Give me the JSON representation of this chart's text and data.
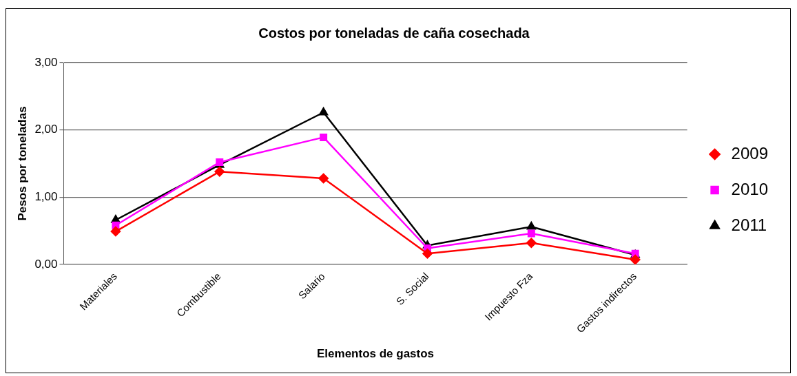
{
  "chart_data": {
    "type": "line",
    "title": "Costos por toneladas de caña cosechada",
    "xlabel": "Elementos de gastos",
    "ylabel": "Pesos por toneladas",
    "categories": [
      "Materiales",
      "Combustible",
      "Salario",
      "S. Social",
      "Impuesto Fza",
      "Gastos indirectos"
    ],
    "series": [
      {
        "name": "2009",
        "color": "#ff0000",
        "marker": "diamond",
        "values": [
          0.49,
          1.38,
          1.28,
          0.16,
          0.32,
          0.07
        ]
      },
      {
        "name": "2010",
        "color": "#ff00ff",
        "marker": "square",
        "values": [
          0.58,
          1.52,
          1.89,
          0.24,
          0.46,
          0.16
        ]
      },
      {
        "name": "2011",
        "color": "#000000",
        "marker": "triangle",
        "values": [
          0.66,
          1.48,
          2.26,
          0.28,
          0.56,
          0.14
        ]
      }
    ],
    "ylim": [
      0,
      3
    ],
    "yticks": [
      {
        "value": 0,
        "label": "0,00"
      },
      {
        "value": 1,
        "label": "1,00"
      },
      {
        "value": 2,
        "label": "2,00"
      },
      {
        "value": 3,
        "label": "3,00"
      }
    ],
    "grid": "y",
    "legend": "right",
    "line_style": "solid"
  }
}
